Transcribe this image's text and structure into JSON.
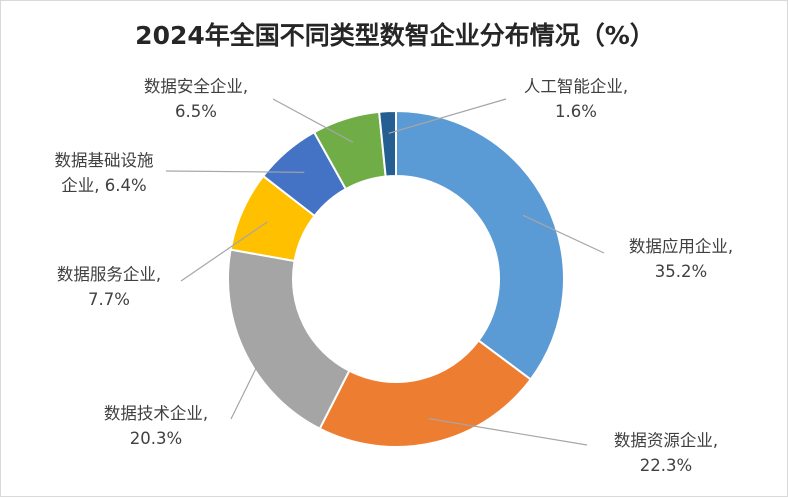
{
  "chart_data": {
    "type": "pie",
    "variant": "doughnut",
    "title": "2024年全国不同类型数智企业分布情况（%）",
    "unit": "%",
    "legend": "none",
    "slices": [
      {
        "name": "数据应用企业",
        "value": 35.2,
        "color": "#5b9bd5",
        "label_lines": [
          "数据应用企业,",
          "35.2%"
        ]
      },
      {
        "name": "数据资源企业",
        "value": 22.3,
        "color": "#ed7d31",
        "label_lines": [
          "数据资源企业,",
          "22.3%"
        ]
      },
      {
        "name": "数据技术企业",
        "value": 20.3,
        "color": "#a5a5a5",
        "label_lines": [
          "数据技术企业,",
          "20.3%"
        ]
      },
      {
        "name": "数据服务企业",
        "value": 7.7,
        "color": "#ffc000",
        "label_lines": [
          "数据服务企业,",
          "7.7%"
        ]
      },
      {
        "name": "数据基础设施企业",
        "value": 6.4,
        "color": "#4472c4",
        "label_lines": [
          "数据基础设施",
          "企业, 6.4%"
        ]
      },
      {
        "name": "数据安全企业",
        "value": 6.5,
        "color": "#70ad47",
        "label_lines": [
          "数据安全企业,",
          "6.5%"
        ]
      },
      {
        "name": "人工智能企业",
        "value": 1.6,
        "color": "#255e91",
        "label_lines": [
          "人工智能企业,",
          "1.6%"
        ]
      }
    ]
  }
}
